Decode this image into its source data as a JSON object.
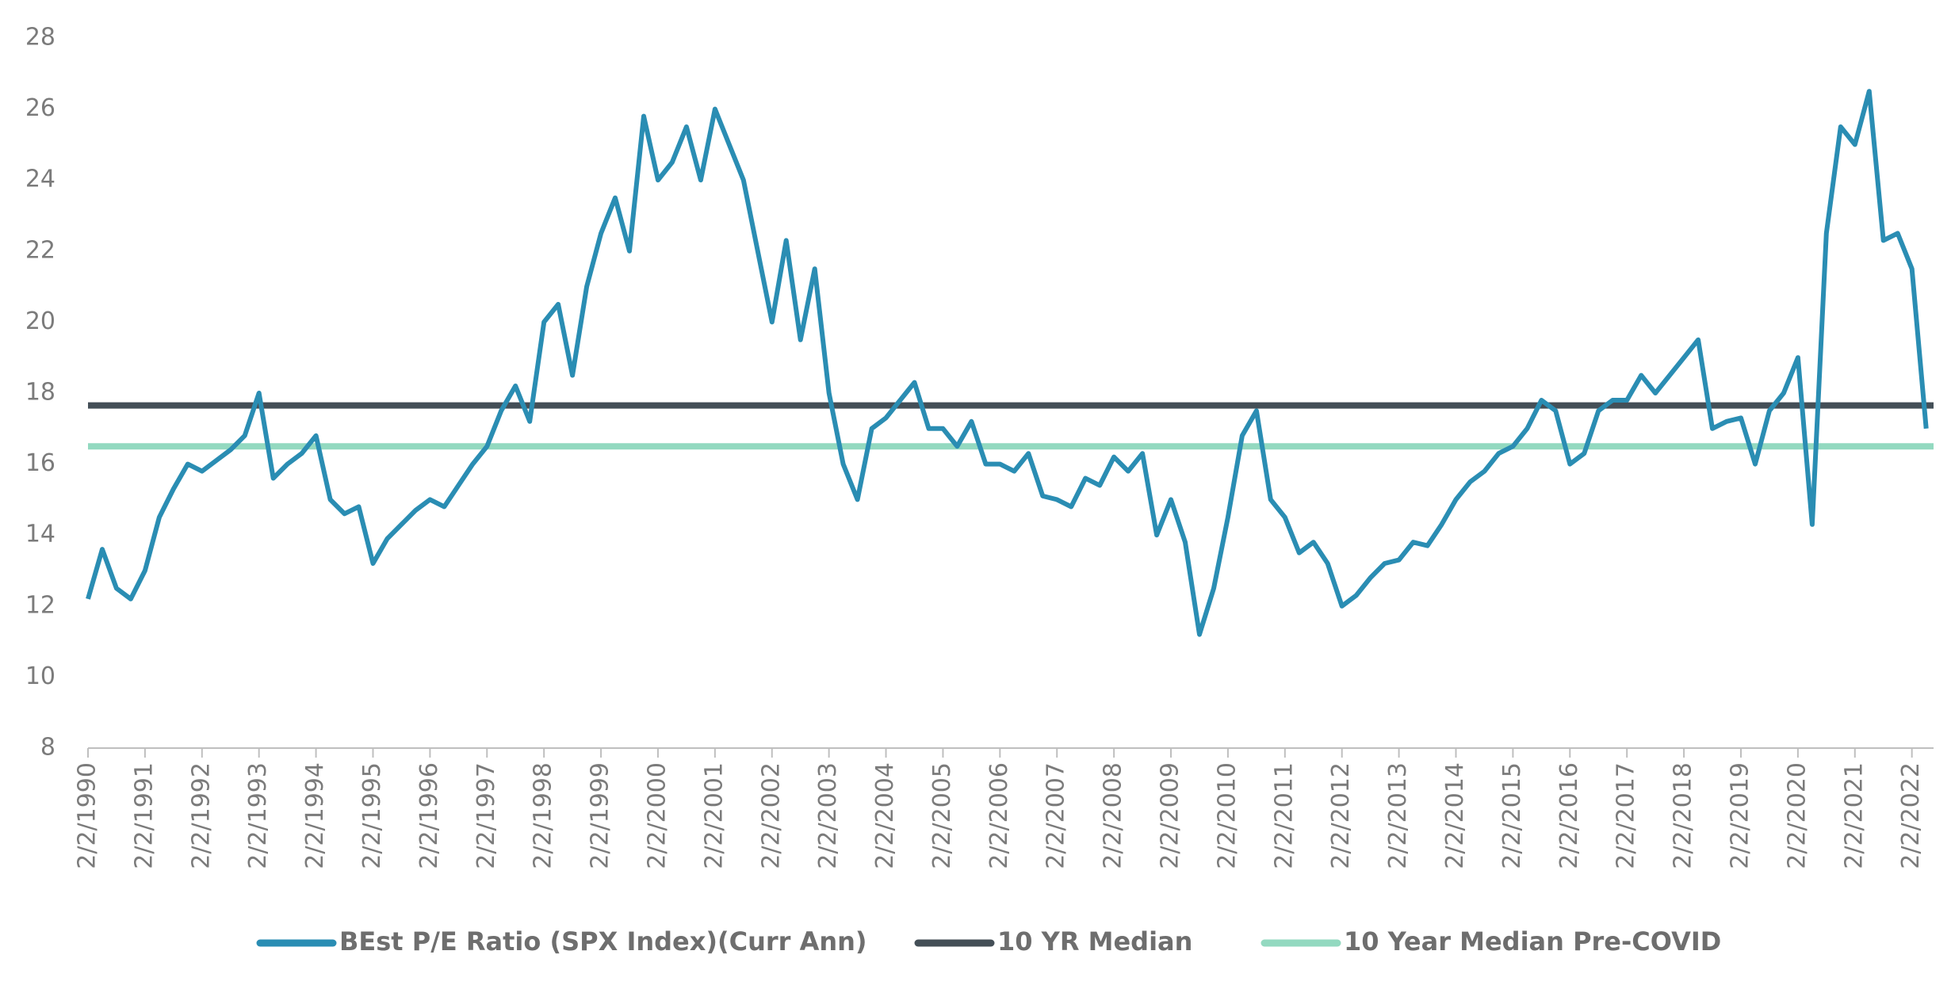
{
  "chart_data": {
    "type": "line",
    "x": [
      1990.09,
      1990.34,
      1990.59,
      1990.84,
      1991.09,
      1991.34,
      1991.59,
      1991.84,
      1992.09,
      1992.34,
      1992.59,
      1992.84,
      1993.09,
      1993.34,
      1993.59,
      1993.84,
      1994.09,
      1994.34,
      1994.59,
      1994.84,
      1995.09,
      1995.34,
      1995.59,
      1995.84,
      1996.09,
      1996.34,
      1996.59,
      1996.84,
      1997.09,
      1997.34,
      1997.59,
      1997.84,
      1998.09,
      1998.34,
      1998.59,
      1998.84,
      1999.09,
      1999.34,
      1999.59,
      1999.84,
      2000.09,
      2000.34,
      2000.59,
      2000.84,
      2001.09,
      2001.34,
      2001.59,
      2001.84,
      2002.09,
      2002.34,
      2002.59,
      2002.84,
      2003.09,
      2003.34,
      2003.59,
      2003.84,
      2004.09,
      2004.34,
      2004.59,
      2004.84,
      2005.09,
      2005.34,
      2005.59,
      2005.84,
      2006.09,
      2006.34,
      2006.59,
      2006.84,
      2007.09,
      2007.34,
      2007.59,
      2007.84,
      2008.09,
      2008.34,
      2008.59,
      2008.84,
      2009.09,
      2009.34,
      2009.59,
      2009.84,
      2010.09,
      2010.34,
      2010.59,
      2010.84,
      2011.09,
      2011.34,
      2011.59,
      2011.84,
      2012.09,
      2012.34,
      2012.59,
      2012.84,
      2013.09,
      2013.34,
      2013.59,
      2013.84,
      2014.09,
      2014.34,
      2014.59,
      2014.84,
      2015.09,
      2015.34,
      2015.59,
      2015.84,
      2016.09,
      2016.34,
      2016.59,
      2016.84,
      2017.09,
      2017.34,
      2017.59,
      2017.84,
      2018.09,
      2018.34,
      2018.59,
      2018.84,
      2019.09,
      2019.34,
      2019.59,
      2019.84,
      2020.09,
      2020.34,
      2020.59,
      2020.84,
      2021.09,
      2021.34,
      2021.59,
      2021.84,
      2022.09,
      2022.34
    ],
    "series": [
      {
        "name": "BEst P/E Ratio (SPX Index)(Curr Ann)",
        "color": "#2a8db3",
        "values": [
          12.2,
          13.6,
          12.5,
          12.2,
          13.0,
          14.5,
          15.3,
          16.0,
          15.8,
          16.1,
          16.4,
          16.8,
          18.0,
          15.6,
          16.0,
          16.3,
          16.8,
          15.0,
          14.6,
          14.8,
          13.2,
          13.9,
          14.3,
          14.7,
          15.0,
          14.8,
          15.4,
          16.0,
          16.5,
          17.5,
          18.2,
          17.2,
          20.0,
          20.5,
          18.5,
          21.0,
          22.5,
          23.5,
          22.0,
          25.8,
          24.0,
          24.5,
          25.5,
          24.0,
          26.0,
          25.0,
          24.0,
          22.0,
          20.0,
          22.3,
          19.5,
          21.5,
          18.0,
          16.0,
          15.0,
          17.0,
          17.3,
          17.8,
          18.3,
          17.0,
          17.0,
          16.5,
          17.2,
          16.0,
          16.0,
          15.8,
          16.3,
          15.1,
          15.0,
          14.8,
          15.6,
          15.4,
          16.2,
          15.8,
          16.3,
          14.0,
          15.0,
          13.8,
          11.2,
          12.5,
          14.5,
          16.8,
          17.5,
          15.0,
          14.5,
          13.5,
          13.8,
          13.2,
          12.0,
          12.3,
          12.8,
          13.2,
          13.3,
          13.8,
          13.7,
          14.3,
          15.0,
          15.5,
          15.8,
          16.3,
          16.5,
          17.0,
          17.8,
          17.5,
          16.0,
          16.3,
          17.5,
          17.8,
          17.8,
          18.5,
          18.0,
          18.5,
          19.0,
          19.5,
          17.0,
          17.2,
          17.3,
          16.0,
          17.5,
          18.0,
          19.0,
          14.3,
          22.5,
          25.5,
          25.0,
          26.5,
          22.3,
          22.5,
          21.5,
          17.0
        ]
      }
    ],
    "reference_lines": [
      {
        "name": "10 YR Median",
        "color": "#444f57",
        "value": 17.65
      },
      {
        "name": "10 Year Median Pre-COVID",
        "color": "#93d9c0",
        "value": 16.5
      }
    ],
    "xlim": [
      1990.09,
      2022.47
    ],
    "xticks": [
      {
        "value": 1990.09,
        "label": "2/2/1990"
      },
      {
        "value": 1991.09,
        "label": "2/2/1991"
      },
      {
        "value": 1992.09,
        "label": "2/2/1992"
      },
      {
        "value": 1993.09,
        "label": "2/2/1993"
      },
      {
        "value": 1994.09,
        "label": "2/2/1994"
      },
      {
        "value": 1995.09,
        "label": "2/2/1995"
      },
      {
        "value": 1996.09,
        "label": "2/2/1996"
      },
      {
        "value": 1997.09,
        "label": "2/2/1997"
      },
      {
        "value": 1998.09,
        "label": "2/2/1998"
      },
      {
        "value": 1999.09,
        "label": "2/2/1999"
      },
      {
        "value": 2000.09,
        "label": "2/2/2000"
      },
      {
        "value": 2001.09,
        "label": "2/2/2001"
      },
      {
        "value": 2002.09,
        "label": "2/2/2002"
      },
      {
        "value": 2003.09,
        "label": "2/2/2003"
      },
      {
        "value": 2004.09,
        "label": "2/2/2004"
      },
      {
        "value": 2005.09,
        "label": "2/2/2005"
      },
      {
        "value": 2006.09,
        "label": "2/2/2006"
      },
      {
        "value": 2007.09,
        "label": "2/2/2007"
      },
      {
        "value": 2008.09,
        "label": "2/2/2008"
      },
      {
        "value": 2009.09,
        "label": "2/2/2009"
      },
      {
        "value": 2010.09,
        "label": "2/2/2010"
      },
      {
        "value": 2011.09,
        "label": "2/2/2011"
      },
      {
        "value": 2012.09,
        "label": "2/2/2012"
      },
      {
        "value": 2013.09,
        "label": "2/2/2013"
      },
      {
        "value": 2014.09,
        "label": "2/2/2014"
      },
      {
        "value": 2015.09,
        "label": "2/2/2015"
      },
      {
        "value": 2016.09,
        "label": "2/2/2016"
      },
      {
        "value": 2017.09,
        "label": "2/2/2017"
      },
      {
        "value": 2018.09,
        "label": "2/2/2018"
      },
      {
        "value": 2019.09,
        "label": "2/2/2019"
      },
      {
        "value": 2020.09,
        "label": "2/2/2020"
      },
      {
        "value": 2021.09,
        "label": "2/2/2021"
      },
      {
        "value": 2022.09,
        "label": "2/2/2022"
      }
    ],
    "ylim": [
      8,
      28
    ],
    "yticks": [
      8,
      10,
      12,
      14,
      16,
      18,
      20,
      22,
      24,
      26,
      28
    ],
    "grid": false,
    "legend": "bottom"
  }
}
